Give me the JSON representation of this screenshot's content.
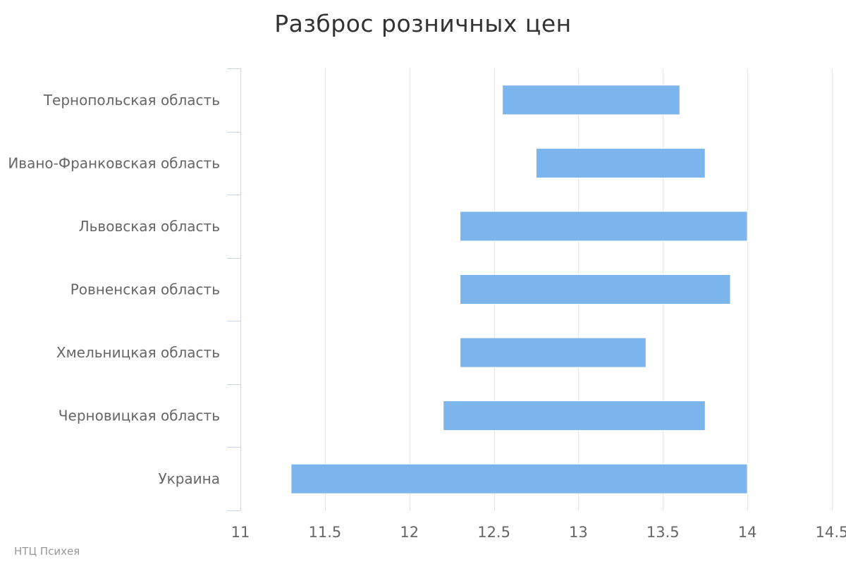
{
  "chart_data": {
    "type": "bar",
    "orientation": "horizontal",
    "subtype": "range",
    "title": "Разброс розничных цен",
    "categories": [
      "Тернопольская область",
      "Ивано-Франковская область",
      "Львовская область",
      "Ровненская область",
      "Хмельницкая область",
      "Черновицкая область",
      "Украина"
    ],
    "series": [
      {
        "low": [
          12.55,
          12.75,
          12.3,
          12.3,
          12.3,
          12.2,
          11.3
        ],
        "high": [
          13.6,
          13.75,
          14.0,
          13.9,
          13.4,
          13.75,
          14.0
        ]
      }
    ],
    "xlim": [
      11,
      14.5
    ],
    "xticks": [
      11,
      11.5,
      12,
      12.5,
      13,
      13.5,
      14,
      14.5
    ],
    "tick_labels": [
      "11",
      "11.5",
      "12",
      "12.5",
      "13",
      "13.5",
      "14",
      "14.5"
    ],
    "grid": true,
    "legend": "none",
    "colors": {
      "bar": "#7cb5ec",
      "grid": "#e6e6e6",
      "axis": "#ccd6eb"
    }
  },
  "credits": "НТЦ Психея"
}
